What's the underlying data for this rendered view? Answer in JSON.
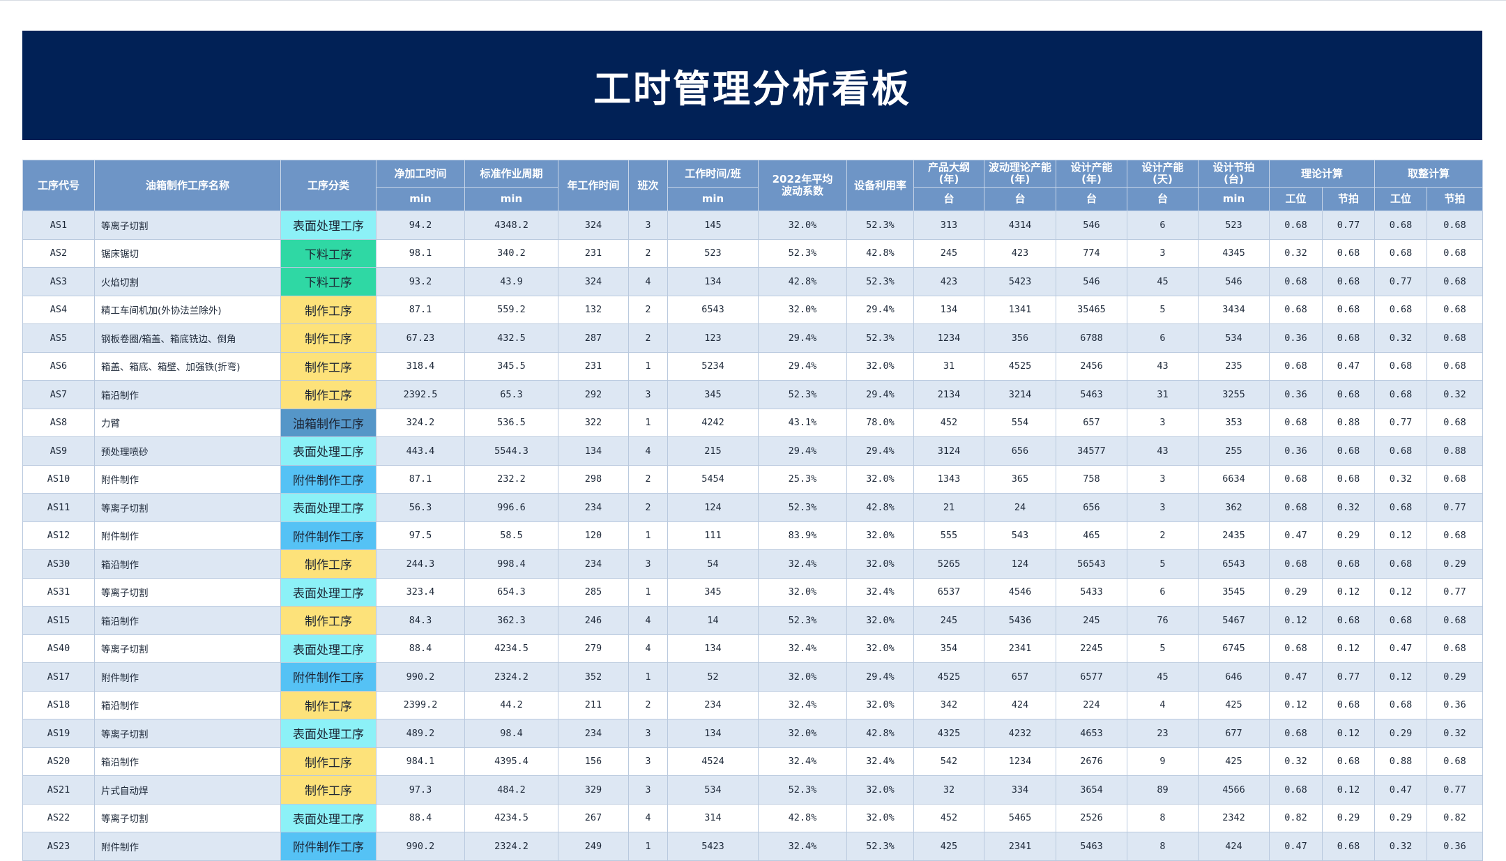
{
  "title": "工时管理分析看板",
  "header_row1": [
    "工序代号",
    "油箱制作工序名称",
    "工序分类",
    "净加工时间",
    "标准作业周期",
    "年工作时间",
    "班次",
    "工作时间/班",
    "2022年平均\n波动系数",
    "设备利用率",
    "产品大纲\n(年)",
    "波动理论产能\n(年)",
    "设计产能\n(年)",
    "设计产能\n(天)",
    "设计节拍\n(台)",
    "理论计算",
    "取整计算"
  ],
  "header_row2": [
    "min",
    "min",
    "min",
    "台",
    "台",
    "台",
    "台",
    "min",
    "工位",
    "节拍",
    "工位",
    "节拍"
  ],
  "category_colors": {
    "表面处理工序": "#8cf1f7",
    "下料工序": "#2fd8a4",
    "制作工序": "#fde27a",
    "油箱制作工序": "#5596c8",
    "附件制作工序": "#55c2f5"
  },
  "rows": [
    [
      "AS1",
      "等离子切割",
      "表面处理工序",
      "94.2",
      "4348.2",
      "324",
      "3",
      "145",
      "32.0%",
      "52.3%",
      "313",
      "4314",
      "546",
      "6",
      "523",
      "0.68",
      "0.77",
      "0.68",
      "0.68"
    ],
    [
      "AS2",
      "锯床锯切",
      "下料工序",
      "98.1",
      "340.2",
      "231",
      "2",
      "523",
      "52.3%",
      "42.8%",
      "245",
      "423",
      "774",
      "3",
      "4345",
      "0.32",
      "0.68",
      "0.68",
      "0.68"
    ],
    [
      "AS3",
      "火焰切割",
      "下料工序",
      "93.2",
      "43.9",
      "324",
      "4",
      "134",
      "42.8%",
      "52.3%",
      "423",
      "5423",
      "546",
      "45",
      "546",
      "0.68",
      "0.68",
      "0.77",
      "0.68"
    ],
    [
      "AS4",
      "精工车间机加(外协法兰除外)",
      "制作工序",
      "87.1",
      "559.2",
      "132",
      "2",
      "6543",
      "32.0%",
      "29.4%",
      "134",
      "1341",
      "35465",
      "5",
      "3434",
      "0.68",
      "0.68",
      "0.68",
      "0.68"
    ],
    [
      "AS5",
      "钢板卷圈/箱盖、箱底铣边、倒角",
      "制作工序",
      "67.23",
      "432.5",
      "287",
      "2",
      "123",
      "29.4%",
      "52.3%",
      "1234",
      "356",
      "6788",
      "6",
      "534",
      "0.36",
      "0.68",
      "0.32",
      "0.68"
    ],
    [
      "AS6",
      "箱盖、箱底、箱壁、加强铁(折弯)",
      "制作工序",
      "318.4",
      "345.5",
      "231",
      "1",
      "5234",
      "29.4%",
      "32.0%",
      "31",
      "4525",
      "2456",
      "43",
      "235",
      "0.68",
      "0.47",
      "0.68",
      "0.68"
    ],
    [
      "AS7",
      "箱沿制作",
      "制作工序",
      "2392.5",
      "65.3",
      "292",
      "3",
      "345",
      "52.3%",
      "29.4%",
      "2134",
      "3214",
      "5463",
      "31",
      "3255",
      "0.36",
      "0.68",
      "0.68",
      "0.32"
    ],
    [
      "AS8",
      "力臂",
      "油箱制作工序",
      "324.2",
      "536.5",
      "322",
      "1",
      "4242",
      "43.1%",
      "78.0%",
      "452",
      "554",
      "657",
      "3",
      "353",
      "0.68",
      "0.88",
      "0.77",
      "0.68"
    ],
    [
      "AS9",
      "预处理喷砂",
      "表面处理工序",
      "443.4",
      "5544.3",
      "134",
      "4",
      "215",
      "29.4%",
      "29.4%",
      "3124",
      "656",
      "34577",
      "43",
      "255",
      "0.36",
      "0.68",
      "0.68",
      "0.88"
    ],
    [
      "AS10",
      "附件制作",
      "附件制作工序",
      "87.1",
      "232.2",
      "298",
      "2",
      "5454",
      "25.3%",
      "32.0%",
      "1343",
      "365",
      "758",
      "3",
      "6634",
      "0.68",
      "0.68",
      "0.32",
      "0.68"
    ],
    [
      "AS11",
      "等离子切割",
      "表面处理工序",
      "56.3",
      "996.6",
      "234",
      "2",
      "124",
      "52.3%",
      "42.8%",
      "21",
      "24",
      "656",
      "3",
      "362",
      "0.68",
      "0.32",
      "0.68",
      "0.77"
    ],
    [
      "AS12",
      "附件制作",
      "附件制作工序",
      "97.5",
      "58.5",
      "120",
      "1",
      "111",
      "83.9%",
      "32.0%",
      "555",
      "543",
      "465",
      "2",
      "2435",
      "0.47",
      "0.29",
      "0.12",
      "0.68"
    ],
    [
      "AS30",
      "箱沿制作",
      "制作工序",
      "244.3",
      "998.4",
      "234",
      "3",
      "54",
      "32.4%",
      "32.0%",
      "5265",
      "124",
      "56543",
      "5",
      "6543",
      "0.68",
      "0.68",
      "0.68",
      "0.29"
    ],
    [
      "AS31",
      "等离子切割",
      "表面处理工序",
      "323.4",
      "654.3",
      "285",
      "1",
      "345",
      "32.0%",
      "32.4%",
      "6537",
      "4546",
      "5433",
      "6",
      "3545",
      "0.29",
      "0.12",
      "0.12",
      "0.77"
    ],
    [
      "AS15",
      "箱沿制作",
      "制作工序",
      "84.3",
      "362.3",
      "246",
      "4",
      "14",
      "52.3%",
      "32.0%",
      "245",
      "5436",
      "245",
      "76",
      "5467",
      "0.12",
      "0.68",
      "0.68",
      "0.68"
    ],
    [
      "AS40",
      "等离子切割",
      "表面处理工序",
      "88.4",
      "4234.5",
      "279",
      "4",
      "134",
      "32.4%",
      "32.0%",
      "354",
      "2341",
      "2245",
      "5",
      "6745",
      "0.68",
      "0.12",
      "0.47",
      "0.68"
    ],
    [
      "AS17",
      "附件制作",
      "附件制作工序",
      "990.2",
      "2324.2",
      "352",
      "1",
      "52",
      "32.0%",
      "29.4%",
      "4525",
      "657",
      "6577",
      "45",
      "646",
      "0.47",
      "0.77",
      "0.12",
      "0.29"
    ],
    [
      "AS18",
      "箱沿制作",
      "制作工序",
      "2399.2",
      "44.2",
      "211",
      "2",
      "234",
      "32.4%",
      "32.0%",
      "342",
      "424",
      "224",
      "4",
      "425",
      "0.12",
      "0.68",
      "0.68",
      "0.36"
    ],
    [
      "AS19",
      "等离子切割",
      "表面处理工序",
      "489.2",
      "98.4",
      "234",
      "3",
      "134",
      "32.0%",
      "42.8%",
      "4325",
      "4232",
      "4653",
      "23",
      "677",
      "0.68",
      "0.12",
      "0.29",
      "0.32"
    ],
    [
      "AS20",
      "箱沿制作",
      "制作工序",
      "984.1",
      "4395.4",
      "156",
      "3",
      "4524",
      "32.4%",
      "32.4%",
      "542",
      "1234",
      "2676",
      "9",
      "425",
      "0.32",
      "0.68",
      "0.88",
      "0.68"
    ],
    [
      "AS21",
      "片式自动焊",
      "制作工序",
      "97.3",
      "484.2",
      "329",
      "3",
      "534",
      "52.3%",
      "32.0%",
      "32",
      "334",
      "3654",
      "89",
      "4566",
      "0.68",
      "0.12",
      "0.47",
      "0.77"
    ],
    [
      "AS22",
      "等离子切割",
      "表面处理工序",
      "88.4",
      "4234.5",
      "267",
      "4",
      "314",
      "42.8%",
      "32.0%",
      "452",
      "5465",
      "2526",
      "8",
      "2342",
      "0.82",
      "0.29",
      "0.29",
      "0.82"
    ],
    [
      "AS23",
      "附件制作",
      "附件制作工序",
      "990.2",
      "2324.2",
      "249",
      "1",
      "5423",
      "32.4%",
      "52.3%",
      "425",
      "2341",
      "5463",
      "8",
      "424",
      "0.47",
      "0.68",
      "0.32",
      "0.36"
    ]
  ]
}
